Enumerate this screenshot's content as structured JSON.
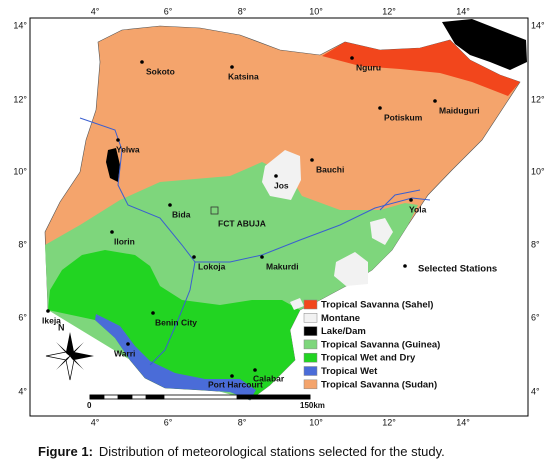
{
  "axes": {
    "longitude": [
      "4°",
      "6°",
      "8°",
      "10°",
      "12°",
      "14°"
    ],
    "latitude": [
      "14°",
      "12°",
      "10°",
      "8°",
      "6°",
      "4°"
    ]
  },
  "stations": [
    "Sokoto",
    "Katsina",
    "Nguru",
    "Maiduguri",
    "Potiskum",
    "Yelwa",
    "Jos",
    "Bauchi",
    "Yola",
    "Bida",
    "Ilorin",
    "Lokoja",
    "Makurdi",
    "Ikeja",
    "Benin City",
    "Warri",
    "Port Harcourt",
    "Calabar"
  ],
  "capital": "FCT ABUJA",
  "legend": {
    "stations": "Selected Stations",
    "zones": [
      {
        "name": "Tropical Savanna (Sahel)",
        "color": "#f2461c"
      },
      {
        "name": "Montane",
        "color": "#f2f2f2"
      },
      {
        "name": "Lake/Dam",
        "color": "#000000"
      },
      {
        "name": "Tropical Savanna (Guinea)",
        "color": "#7ed67c"
      },
      {
        "name": "Tropical Wet  and Dry",
        "color": "#22d422"
      },
      {
        "name": "Tropical Wet",
        "color": "#4a6cd8"
      },
      {
        "name": "Tropical Savanna (Sudan)",
        "color": "#f4a46c"
      }
    ]
  },
  "scale": {
    "start": "0",
    "end": "150km"
  },
  "north": "N",
  "caption": {
    "label": "Figure 1:",
    "text": "Distribution of meteorological stations selected for the study."
  }
}
